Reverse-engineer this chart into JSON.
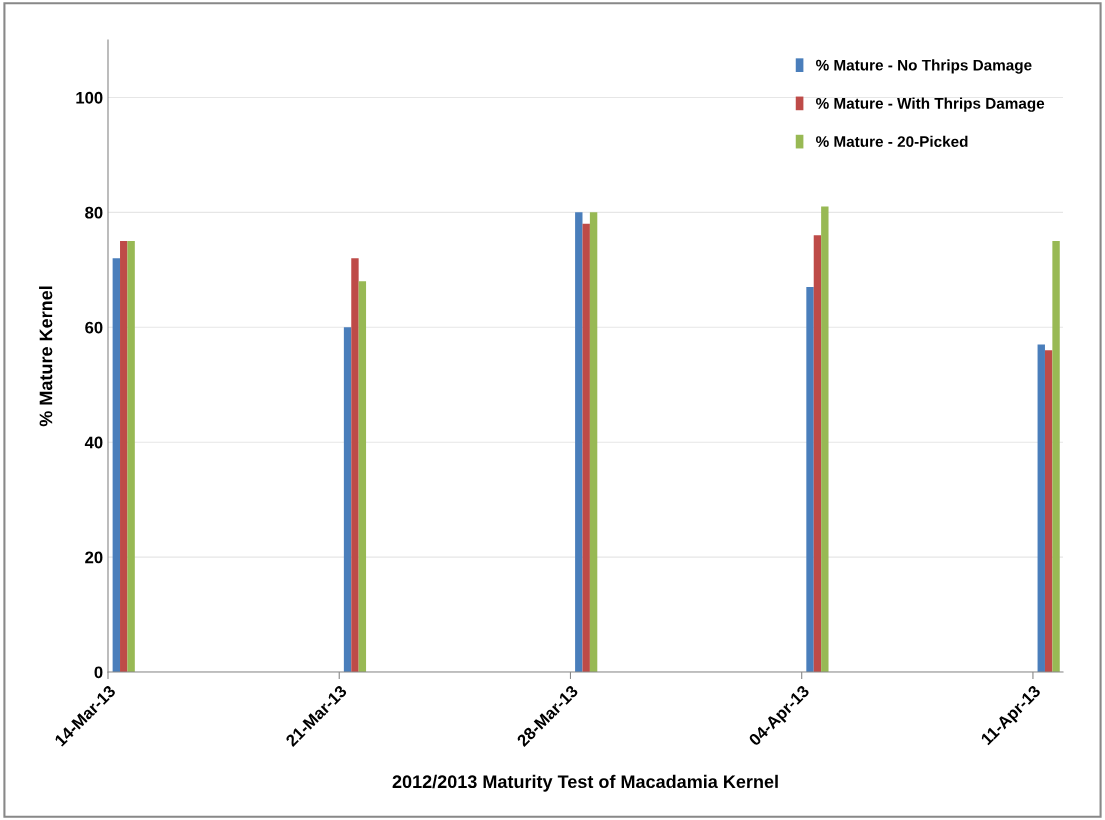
{
  "chart_data": {
    "type": "bar",
    "xlabel": "2012/2013 Maturity Test of Macadamia Kernel",
    "ylabel": "% Mature Kernel",
    "categories": [
      "14-Mar-13",
      "21-Mar-13",
      "28-Mar-13",
      "04-Apr-13",
      "11-Apr-13"
    ],
    "series": [
      {
        "name": "% Mature - No Thrips Damage",
        "color": "#4a7ebb",
        "values": [
          72,
          60,
          80,
          67,
          57
        ]
      },
      {
        "name": "% Mature - With Thrips Damage",
        "color": "#be4b48",
        "values": [
          75,
          72,
          78,
          76,
          56
        ]
      },
      {
        "name": "% Mature - 20-Picked",
        "color": "#98b954",
        "values": [
          75,
          68,
          80,
          81,
          75
        ]
      }
    ],
    "ylim": [
      0,
      110
    ],
    "yticks": [
      0,
      20,
      40,
      60,
      80,
      100
    ],
    "grid": "y",
    "legend": "top right"
  }
}
